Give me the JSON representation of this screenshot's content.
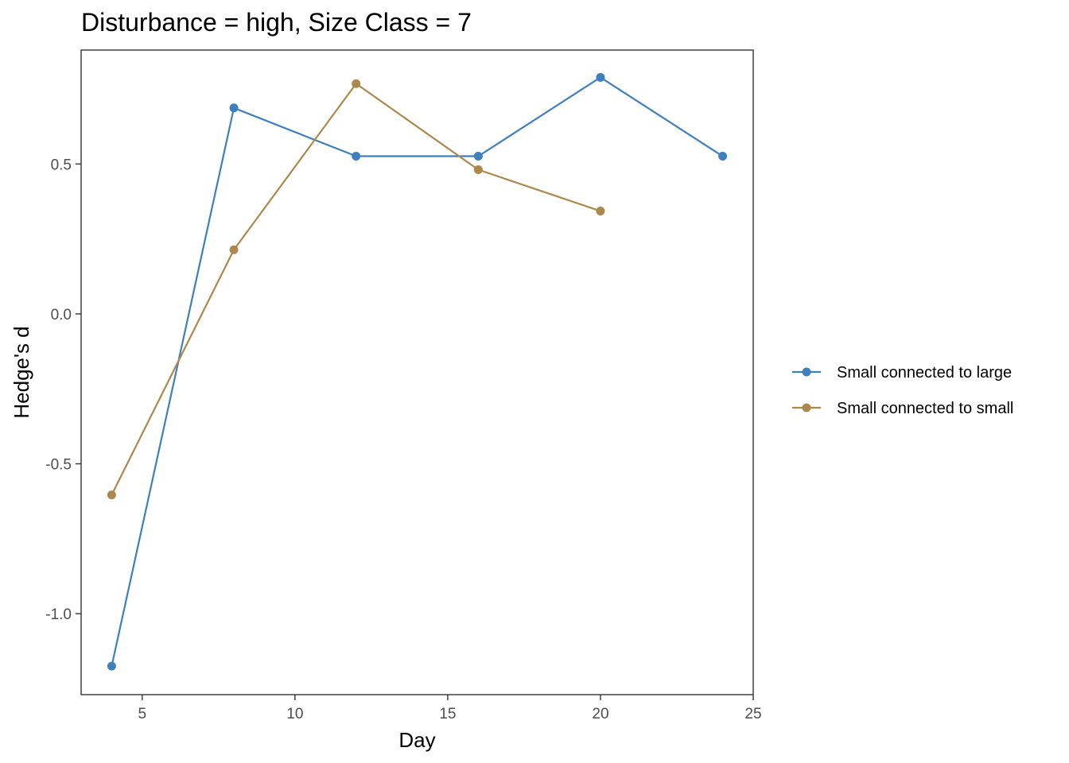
{
  "chart_data": {
    "type": "line",
    "title": "Disturbance = high, Size Class = 7",
    "xlabel": "Day",
    "ylabel": "Hedge's d",
    "xlim": [
      3,
      25
    ],
    "ylim": [
      -1.27,
      0.88
    ],
    "x_ticks": [
      5,
      10,
      15,
      20,
      25
    ],
    "y_ticks": [
      -1.0,
      -0.5,
      0.0,
      0.5
    ],
    "grid": false,
    "legend_position": "right",
    "series": [
      {
        "name": "Small connected to large",
        "color": "#3F7FBD",
        "x": [
          4,
          8,
          12,
          16,
          20,
          24
        ],
        "y": [
          -1.175,
          0.687,
          0.526,
          0.526,
          0.789,
          0.526
        ]
      },
      {
        "name": "Small connected to small",
        "color": "#AD884C",
        "x": [
          4,
          8,
          12,
          16,
          20
        ],
        "y": [
          -0.604,
          0.214,
          0.768,
          0.481,
          0.343
        ]
      }
    ]
  }
}
